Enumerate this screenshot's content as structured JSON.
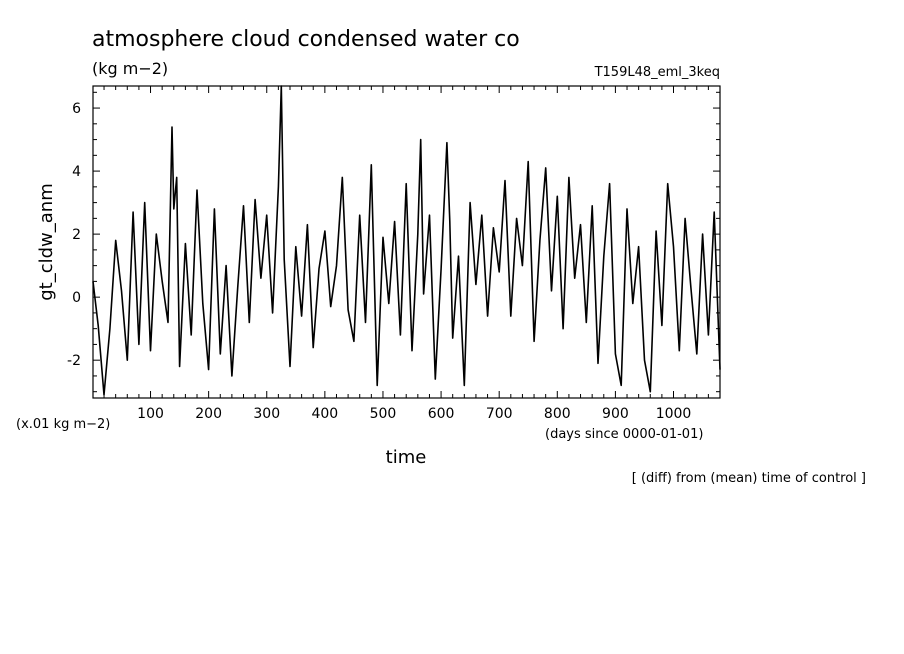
{
  "chart_data": {
    "type": "line",
    "title": "atmosphere cloud condensed water co",
    "units": "(kg m−2)",
    "experiment": "T159L48_eml_3keq",
    "ylabel": "gt_cldw_anm",
    "xlabel": "time",
    "x_units": "(days since 0000-01-01)",
    "y_scale_note": "(x.01 kg m−2)",
    "footnote": "[ (diff) from (mean) time of control ]",
    "xlim": [
      1,
      1080
    ],
    "ylim": [
      -3.2,
      6.7
    ],
    "x_ticks": [
      100,
      200,
      300,
      400,
      500,
      600,
      700,
      800,
      900,
      1000
    ],
    "y_ticks": [
      -2,
      0,
      2,
      4,
      6
    ],
    "grid": false,
    "series": [
      {
        "x": [
          1,
          10,
          20,
          30,
          40,
          50,
          60,
          70,
          80,
          90,
          100,
          110,
          120,
          130,
          137,
          140,
          145,
          150,
          160,
          170,
          180,
          190,
          200,
          210,
          220,
          230,
          240,
          250,
          260,
          270,
          280,
          290,
          300,
          310,
          320,
          325,
          330,
          340,
          350,
          360,
          370,
          380,
          390,
          400,
          410,
          420,
          430,
          440,
          450,
          460,
          470,
          480,
          490,
          500,
          510,
          520,
          530,
          540,
          550,
          560,
          565,
          570,
          580,
          590,
          600,
          610,
          615,
          620,
          630,
          640,
          650,
          660,
          670,
          680,
          690,
          700,
          710,
          720,
          730,
          740,
          750,
          760,
          770,
          780,
          790,
          800,
          810,
          820,
          830,
          840,
          850,
          860,
          870,
          880,
          890,
          900,
          910,
          920,
          930,
          940,
          950,
          960,
          970,
          980,
          990,
          1000,
          1010,
          1020,
          1030,
          1040,
          1050,
          1060,
          1070,
          1080
        ],
        "y": [
          0.5,
          -0.9,
          -3.1,
          -1.0,
          1.8,
          0.2,
          -2.0,
          2.7,
          -1.5,
          3.0,
          -1.7,
          2.0,
          0.5,
          -0.8,
          5.4,
          2.8,
          3.8,
          -2.2,
          1.7,
          -1.2,
          3.4,
          -0.2,
          -2.3,
          2.8,
          -1.8,
          1.0,
          -2.5,
          0.3,
          2.9,
          -0.8,
          3.1,
          0.6,
          2.6,
          -0.5,
          3.5,
          6.7,
          1.2,
          -2.2,
          1.6,
          -0.6,
          2.3,
          -1.6,
          0.9,
          2.1,
          -0.3,
          1.0,
          3.8,
          -0.4,
          -1.4,
          2.6,
          -0.8,
          4.2,
          -2.8,
          1.9,
          -0.2,
          2.4,
          -1.2,
          3.6,
          -1.7,
          2.0,
          5.0,
          0.1,
          2.6,
          -2.6,
          0.9,
          4.9,
          2.4,
          -1.3,
          1.3,
          -2.8,
          3.0,
          0.4,
          2.6,
          -0.6,
          2.2,
          0.8,
          3.7,
          -0.6,
          2.5,
          1.0,
          4.3,
          -1.4,
          1.8,
          4.1,
          0.2,
          3.2,
          -1.0,
          3.8,
          0.6,
          2.3,
          -0.8,
          2.9,
          -2.1,
          1.3,
          3.6,
          -1.8,
          -2.8,
          2.8,
          -0.2,
          1.6,
          -2.0,
          -3.0,
          2.1,
          -0.9,
          3.6,
          1.6,
          -1.7,
          2.5,
          0.3,
          -1.8,
          2.0,
          -1.2,
          2.7,
          -2.3
        ]
      }
    ]
  }
}
